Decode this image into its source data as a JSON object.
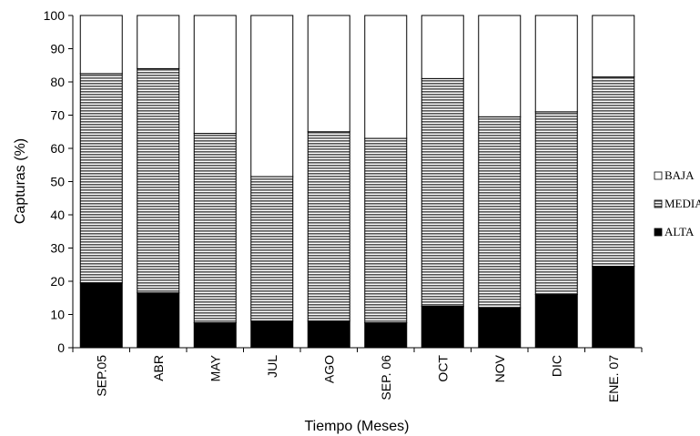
{
  "chart_data": {
    "type": "bar",
    "stacked": true,
    "percent_stacked": true,
    "categories": [
      "SEP.05",
      "ABR",
      "MAY",
      "JUL",
      "AGO",
      "SEP. 06",
      "OCT",
      "NOV",
      "DIC",
      "ENE. 07"
    ],
    "series": [
      {
        "name": "ALTA",
        "values": [
          19.5,
          16.5,
          7.5,
          8,
          8,
          7.5,
          12.5,
          12,
          16,
          24.5
        ],
        "fill": "solid-black"
      },
      {
        "name": "MEDIA",
        "values": [
          63,
          67.5,
          57,
          43.5,
          57,
          55.5,
          68.5,
          57.5,
          55,
          57
        ],
        "fill": "horizontal-stripes"
      },
      {
        "name": "BAJA",
        "values": [
          17.5,
          16,
          35.5,
          48.5,
          35,
          37,
          19,
          30.5,
          29,
          18.5
        ],
        "fill": "white"
      }
    ],
    "legend_order": [
      "BAJA",
      "MEDIA",
      "ALTA"
    ],
    "title": "",
    "xlabel": "Tiempo (Meses)",
    "ylabel": "Capturas (%)",
    "ylim": [
      0,
      100
    ],
    "yticks": [
      0,
      10,
      20,
      30,
      40,
      50,
      60,
      70,
      80,
      90,
      100
    ],
    "grid": false,
    "legend_position": "right",
    "colors": {
      "alta": "#000000",
      "media_stripe": "#555555",
      "baja": "#ffffff",
      "outline": "#000000"
    }
  }
}
